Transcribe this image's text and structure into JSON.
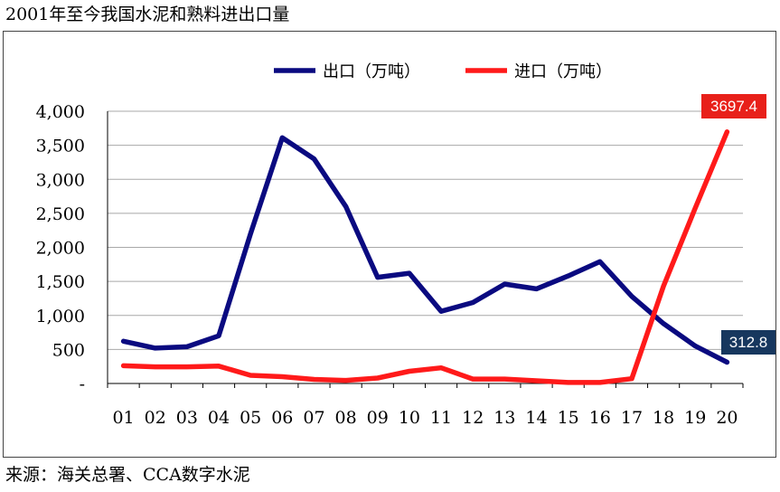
{
  "title": "2001年至今我国水泥和熟料进出口量",
  "source": "来源：海关总署、CCA数字水泥",
  "chart_data": {
    "type": "line",
    "categories": [
      "01",
      "02",
      "03",
      "04",
      "05",
      "06",
      "07",
      "08",
      "09",
      "10",
      "11",
      "12",
      "13",
      "14",
      "15",
      "16",
      "17",
      "18",
      "19",
      "20"
    ],
    "ylim": [
      0,
      4000
    ],
    "yticks": [
      0,
      500,
      1000,
      1500,
      2000,
      2500,
      3000,
      3500,
      4000
    ],
    "ytick_labels": [
      "-",
      "500",
      "1,000",
      "1,500",
      "2,000",
      "2,500",
      "3,000",
      "3,500",
      "4,000"
    ],
    "grid": true,
    "legend_position": "top-center",
    "series": [
      {
        "name": "出口（万吨）",
        "color": "#0a0a80",
        "values": [
          620,
          520,
          540,
          700,
          2200,
          3610,
          3300,
          2600,
          1560,
          1620,
          1060,
          1190,
          1460,
          1390,
          1580,
          1790,
          1280,
          880,
          550,
          312.8
        ]
      },
      {
        "name": "进口（万吨）",
        "color": "#ff1a1a",
        "values": [
          260,
          245,
          245,
          255,
          120,
          100,
          60,
          45,
          80,
          180,
          230,
          65,
          65,
          40,
          15,
          15,
          70,
          1430,
          2580,
          3697.4
        ]
      }
    ],
    "annotations": [
      {
        "series": 1,
        "index": 19,
        "text": "3697.4",
        "color": "#e8201a"
      },
      {
        "series": 0,
        "index": 19,
        "text": "312.8",
        "color": "#17375e"
      }
    ]
  }
}
